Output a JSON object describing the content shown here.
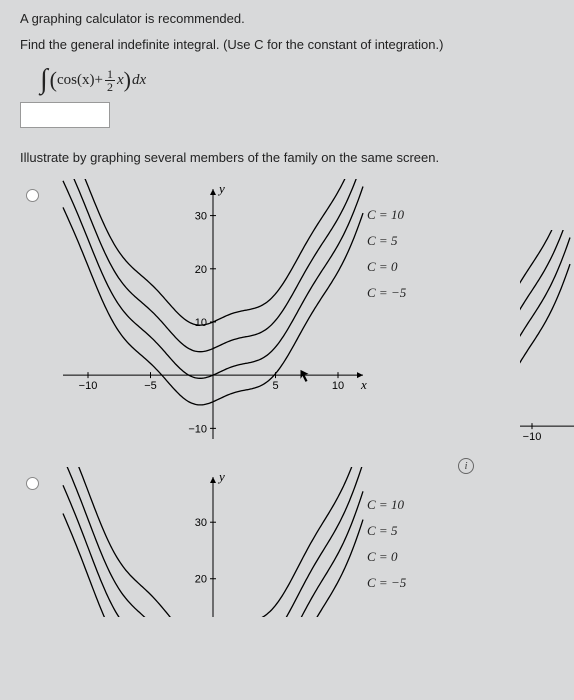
{
  "prompt": {
    "line1": "A graphing calculator is recommended.",
    "line2": "Find the general indefinite integral. (Use C for the constant of integration.)"
  },
  "integral": {
    "cos": "cos(x)",
    "plus": " + ",
    "frac_num": "1",
    "frac_den": "2",
    "xvar": "x",
    "dx": "dx"
  },
  "illustrate": "Illustrate by graphing several members of the family on the same screen.",
  "chart1": {
    "type": "line",
    "xlim": [
      -12,
      12
    ],
    "ylim": [
      -12,
      35
    ],
    "xticks": [
      -10,
      -5,
      5,
      10
    ],
    "yticks": [
      -10,
      10,
      20,
      30
    ],
    "y_axis_label": "y",
    "x_axis_label": "x",
    "curves_C": [
      10,
      5,
      0,
      -5
    ],
    "labels": [
      "C = 10",
      "C = 5",
      "C = 0",
      "C = −5"
    ],
    "label_y_offsets": [
      34,
      28,
      24,
      20
    ],
    "axis_color": "#000000",
    "curve_color": "#000000",
    "bg": "#d8d9da",
    "cursor_xy": [
      7,
      1
    ]
  },
  "chart2_fragment": {
    "type": "line",
    "xlim": [
      -12,
      12
    ],
    "ylim_visible": [
      18,
      35
    ],
    "yticks": [
      20,
      30
    ],
    "y_axis_label": "y",
    "labels": [
      "C = 10",
      "C = 5",
      "C = 0",
      "C = −5"
    ],
    "axis_color": "#000000",
    "curve_color": "#000000"
  },
  "right_fragment": {
    "xtick": "−10"
  },
  "info_glyph": "i"
}
